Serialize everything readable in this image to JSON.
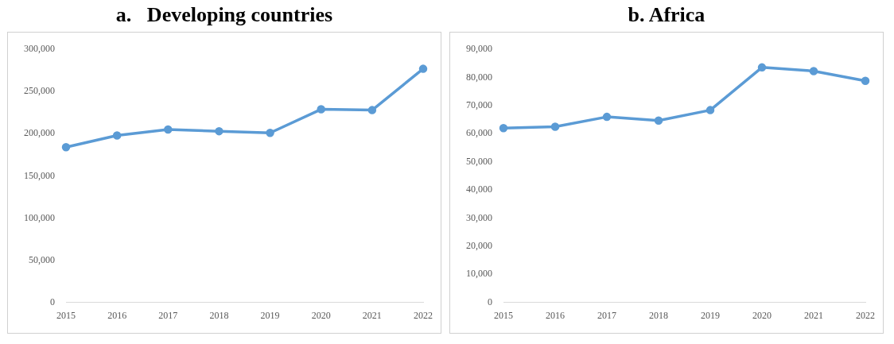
{
  "chart_data": [
    {
      "type": "line",
      "title": "a.   Developing countries",
      "categories": [
        "2015",
        "2016",
        "2017",
        "2018",
        "2019",
        "2020",
        "2021",
        "2022"
      ],
      "series": [
        {
          "color": "#5b9bd5",
          "values": [
            184000,
            198000,
            205000,
            203000,
            201000,
            229000,
            228000,
            277000
          ]
        }
      ],
      "ylim": [
        0,
        300000
      ],
      "yticks": [
        {
          "value": 0,
          "label": "0"
        },
        {
          "value": 50000,
          "label": "50,000"
        },
        {
          "value": 100000,
          "label": "100,000"
        },
        {
          "value": 150000,
          "label": "150,000"
        },
        {
          "value": 200000,
          "label": "200,000"
        },
        {
          "value": 250000,
          "label": "250,000"
        },
        {
          "value": 300000,
          "label": "300,000"
        }
      ],
      "marker": "circle",
      "legend": false,
      "grid": false
    },
    {
      "type": "line",
      "title": "b. Africa",
      "categories": [
        "2015",
        "2016",
        "2017",
        "2018",
        "2019",
        "2020",
        "2021",
        "2022"
      ],
      "series": [
        {
          "color": "#5b9bd5",
          "values": [
            62000,
            62500,
            66000,
            64700,
            68400,
            83600,
            82300,
            78800
          ]
        }
      ],
      "ylim": [
        0,
        90000
      ],
      "yticks": [
        {
          "value": 0,
          "label": "0"
        },
        {
          "value": 10000,
          "label": "10,000"
        },
        {
          "value": 20000,
          "label": "20,000"
        },
        {
          "value": 30000,
          "label": "30,000"
        },
        {
          "value": 40000,
          "label": "40,000"
        },
        {
          "value": 50000,
          "label": "50,000"
        },
        {
          "value": 60000,
          "label": "60,000"
        },
        {
          "value": 70000,
          "label": "70,000"
        },
        {
          "value": 80000,
          "label": "80,000"
        },
        {
          "value": 90000,
          "label": "90,000"
        }
      ],
      "marker": "circle",
      "legend": false,
      "grid": false
    }
  ]
}
